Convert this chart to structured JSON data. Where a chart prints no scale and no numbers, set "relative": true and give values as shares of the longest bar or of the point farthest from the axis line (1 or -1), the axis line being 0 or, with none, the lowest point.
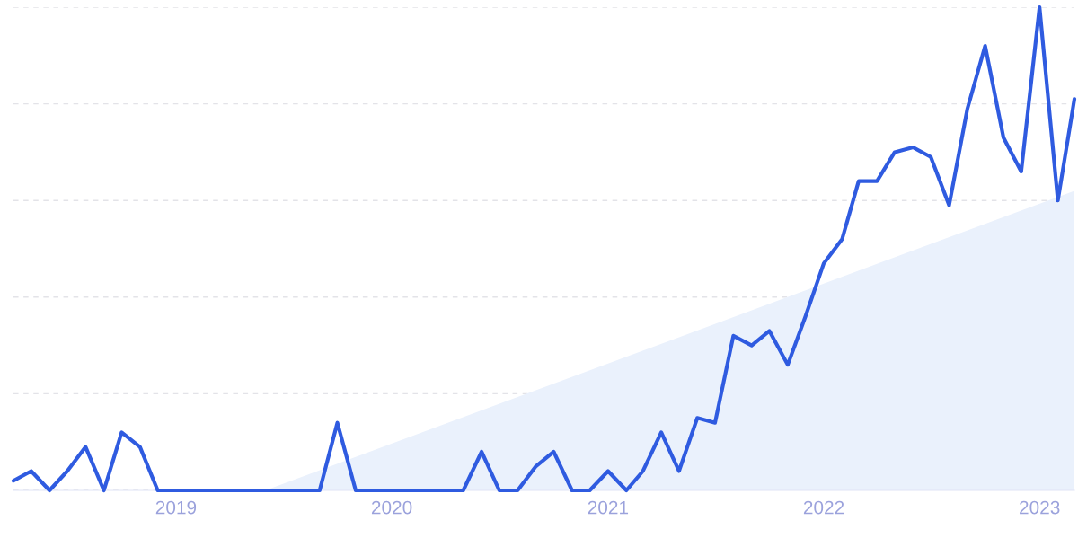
{
  "chart_data": {
    "type": "line",
    "relative": true,
    "x": [
      "2018-04",
      "2018-05",
      "2018-06",
      "2018-07",
      "2018-08",
      "2018-09",
      "2018-10",
      "2018-11",
      "2018-12",
      "2019-01",
      "2019-02",
      "2019-03",
      "2019-04",
      "2019-05",
      "2019-06",
      "2019-07",
      "2019-08",
      "2019-09",
      "2019-10",
      "2019-11",
      "2019-12",
      "2020-01",
      "2020-02",
      "2020-03",
      "2020-04",
      "2020-05",
      "2020-06",
      "2020-07",
      "2020-08",
      "2020-09",
      "2020-10",
      "2020-11",
      "2020-12",
      "2021-01",
      "2021-02",
      "2021-03",
      "2021-04",
      "2021-05",
      "2021-06",
      "2021-07",
      "2021-08",
      "2021-09",
      "2021-10",
      "2021-11",
      "2021-12",
      "2022-01",
      "2022-02",
      "2022-03",
      "2022-04",
      "2022-05",
      "2022-06",
      "2022-07",
      "2022-08",
      "2022-09",
      "2022-10",
      "2022-11",
      "2022-12",
      "2023-01",
      "2023-02",
      "2023-03"
    ],
    "series": [
      {
        "type": "area",
        "color": "#eaf1fc",
        "x": [
          "2019-06",
          "2023-03"
        ],
        "values": [
          0,
          0.62
        ]
      },
      {
        "color": "#2f5be0",
        "values": [
          0.02,
          0.04,
          0,
          0.04,
          0.09,
          0,
          0.12,
          0.09,
          0,
          0,
          0,
          0,
          0,
          0,
          0,
          0,
          0,
          0,
          0.14,
          0,
          0,
          0,
          0,
          0,
          0,
          0,
          0.08,
          0,
          0,
          0.05,
          0.08,
          0,
          0,
          0.04,
          0,
          0.04,
          0.12,
          0.04,
          0.15,
          0.14,
          0.32,
          0.3,
          0.33,
          0.26,
          0.36,
          0.47,
          0.52,
          0.64,
          0.64,
          0.7,
          0.71,
          0.69,
          0.59,
          0.79,
          0.92,
          0.73,
          0.66,
          1.0,
          0.6,
          0.81
        ]
      }
    ],
    "xlim": [
      "2018-04",
      "2023-03"
    ],
    "xticks": [
      {
        "value": "2019-01",
        "label": "2019"
      },
      {
        "value": "2020-01",
        "label": "2020"
      },
      {
        "value": "2021-01",
        "label": "2021"
      },
      {
        "value": "2022-01",
        "label": "2022"
      },
      {
        "value": "2023-01",
        "label": "2023"
      }
    ],
    "grid": "y",
    "legend": false,
    "marker": "none",
    "line_style": "solid"
  }
}
